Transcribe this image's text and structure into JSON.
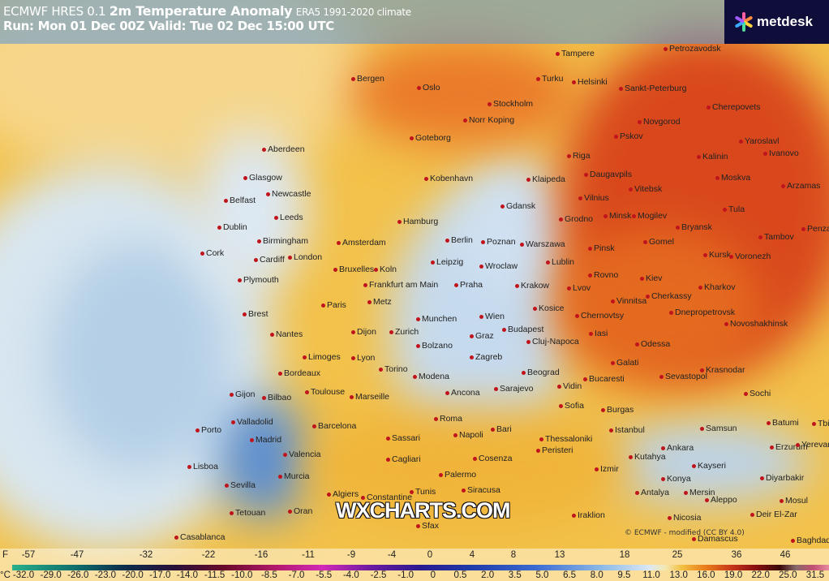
{
  "header": {
    "model": "ECMWF HRES 0.1",
    "title": "2m Temperature Anomaly",
    "climate": "ERA5 1991-2020 climate",
    "run_line": "Run: Mon 01 Dec 00Z Valid: Tue 02 Dec 15:00 UTC"
  },
  "logo": {
    "text": "metdesk"
  },
  "watermark": "WXCHARTS.COM",
  "copyright": "© ECMWF - modified (CC BY 4.0)",
  "legend": {
    "f_unit": "F",
    "c_unit": "°C",
    "f_labels": [
      "-57",
      "-47",
      "-32",
      "-22",
      "-16",
      "-11",
      "-9",
      "-4",
      "0",
      "4",
      "8",
      "13",
      "18",
      "25",
      "36",
      "46"
    ],
    "c_labels": [
      "-32.0",
      "-29.0",
      "-26.0",
      "-23.0",
      "-20.0",
      "-17.0",
      "-14.0",
      "-11.5",
      "-10.0",
      "-8.5",
      "-7.0",
      "-5.5",
      "-4.0",
      "-2.5",
      "-1.0",
      "0",
      "0.5",
      "2.0",
      "3.5",
      "5.0",
      "6.5",
      "8.0",
      "9.5",
      "11.0",
      "13.0",
      "16.0",
      "19.0",
      "22.0",
      "25.0",
      "31.5"
    ]
  },
  "colors": {
    "cold": "#3a6ad0",
    "warm": "#e87a1a",
    "hot": "#c8381a",
    "header_bg": "#5a96d7",
    "logo_bg": "#0f0e3a",
    "city_dot": "#c0141c"
  },
  "cities": [
    "Petrozavodsk",
    "Tampere",
    "Bergen",
    "Oslo",
    "Turku",
    "Helsinki",
    "Sankt-Peterburg",
    "Cherepovets",
    "Stockholm",
    "Norr Koping",
    "Novgorod",
    "Pskov",
    "Yaroslavl",
    "Ivanovo",
    "Aberdeen",
    "Goteborg",
    "Kalinin",
    "Riga",
    "Daugavpils",
    "Vitebsk",
    "Moskva",
    "Arzamas",
    "Glasgow",
    "Kobenhavn",
    "Klaipeda",
    "Newcastle",
    "Vilnius",
    "Belfast",
    "Gdansk",
    "Tula",
    "Leeds",
    "Dublin",
    "Hamburg",
    "Grodno",
    "Minsk",
    "Mogilev",
    "Bryansk",
    "Tambov",
    "Penza",
    "Birmingham",
    "Berlin",
    "Poznan",
    "Warszawa",
    "Amsterdam",
    "Pinsk",
    "Gomel",
    "Cork",
    "Cardiff",
    "London",
    "Bruxelles",
    "Koln",
    "Leipzig",
    "Wroclaw",
    "Lublin",
    "Kursk",
    "Voronezh",
    "Plymouth",
    "Frankfurt am Main",
    "Praha",
    "Krakow",
    "Rovno",
    "Kiev",
    "Kharkov",
    "Paris",
    "Metz",
    "Lvov",
    "Vinnitsa",
    "Cherkassy",
    "Brest",
    "Kosice",
    "Dnepropetrovsk",
    "Munchen",
    "Wien",
    "Chernovtsy",
    "Novoshakhinsk",
    "Nantes",
    "Dijon",
    "Zurich",
    "Budapest",
    "Graz",
    "Iasi",
    "Cluj-Napoca",
    "Odessa",
    "Limoges",
    "Lyon",
    "Bolzano",
    "Zagreb",
    "Galati",
    "Bordeaux",
    "Torino",
    "Modena",
    "Beograd",
    "Sevastopol",
    "Krasnodar",
    "Bucaresti",
    "Vidin",
    "Toulouse",
    "Marseille",
    "Ancona",
    "Sarajevo",
    "Gijon",
    "Bilbao",
    "Sofia",
    "Burgas",
    "Sochi",
    "Porto",
    "Valladolid",
    "Barcelona",
    "Roma",
    "Bari",
    "Istanbul",
    "Samsun",
    "Batumi",
    "Tbilisi",
    "Madrid",
    "Valencia",
    "Sassari",
    "Napoli",
    "Thessaloniki",
    "Ankara",
    "Erzurum",
    "Yerevan",
    "Lisboa",
    "Cagliari",
    "Cosenza",
    "Peristeri",
    "Kutahya",
    "Kayseri",
    "Murcia",
    "Izmir",
    "Konya",
    "Diyarbakir",
    "Sevilla",
    "Palermo",
    "Siracusa",
    "Antalya",
    "Mersin",
    "Algiers",
    "Constantine",
    "Tunis",
    "Aleppo",
    "Mosul",
    "Tetouan",
    "Oran",
    "Iraklion",
    "Nicosia",
    "Deir El-Zar",
    "Casablanca",
    "Sfax",
    "Damascus",
    "Baghdad"
  ]
}
